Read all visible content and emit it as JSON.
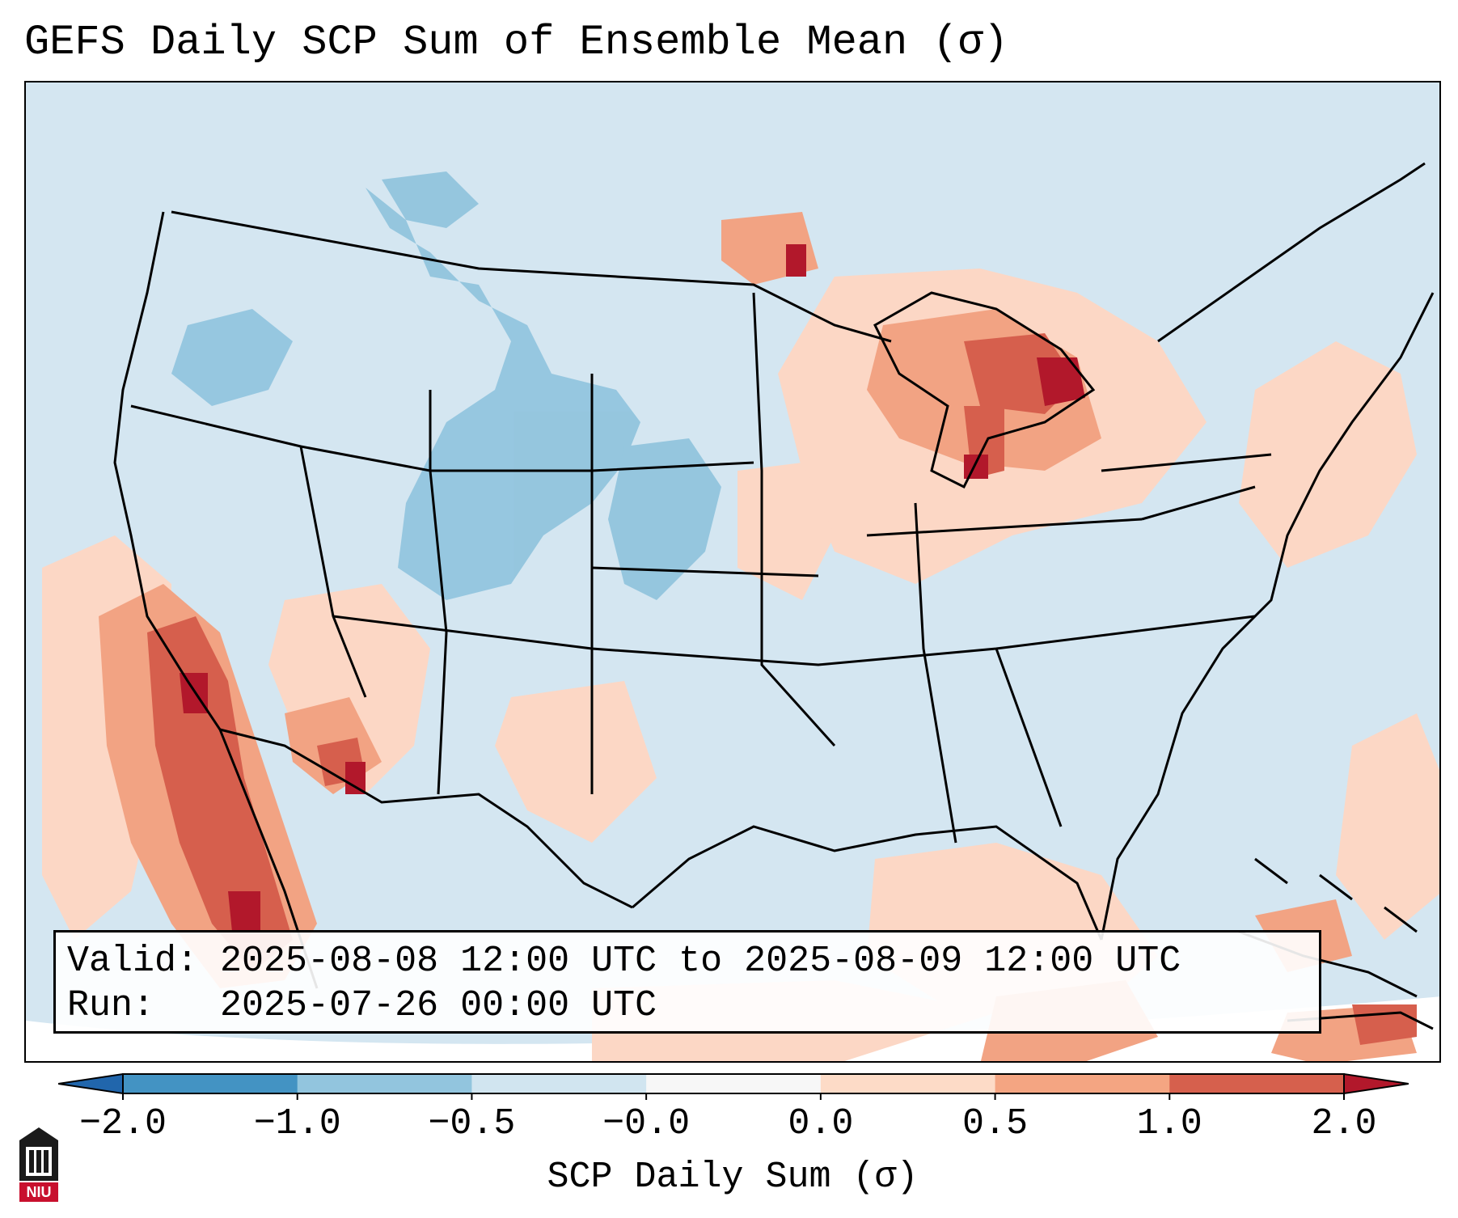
{
  "title": "GEFS Daily SCP Sum of Ensemble Mean (σ)",
  "info": {
    "valid_label": "Valid:",
    "valid_value": "2025-08-08 12:00 UTC to 2025-08-09 12:00 UTC",
    "run_label": "Run:",
    "run_value": "2025-07-26 00:00 UTC"
  },
  "colorbar": {
    "label": "SCP Daily Sum (σ)",
    "ticks": [
      "−2.0",
      "−1.0",
      "−0.5",
      "−0.0",
      "0.0",
      "0.5",
      "1.0",
      "2.0"
    ],
    "segment_colors": [
      "#4393c3",
      "#92c5de",
      "#d1e5f0",
      "#f7f7f7",
      "#fddbc7",
      "#f4a582",
      "#d6604d"
    ],
    "extend_low_color": "#2166ac",
    "extend_high_color": "#b2182b"
  },
  "logo": {
    "text": "NIU",
    "color": "#c8102e"
  },
  "map": {
    "ocean_land_base": "#d4e6f1",
    "levels": {
      "light_red": "#fcd7c5",
      "mid_red": "#f2a383",
      "strong_red": "#d65f4d",
      "dark_red": "#b2182b",
      "light_blue": "#d1e5f0",
      "mid_blue": "#92c5de"
    }
  }
}
